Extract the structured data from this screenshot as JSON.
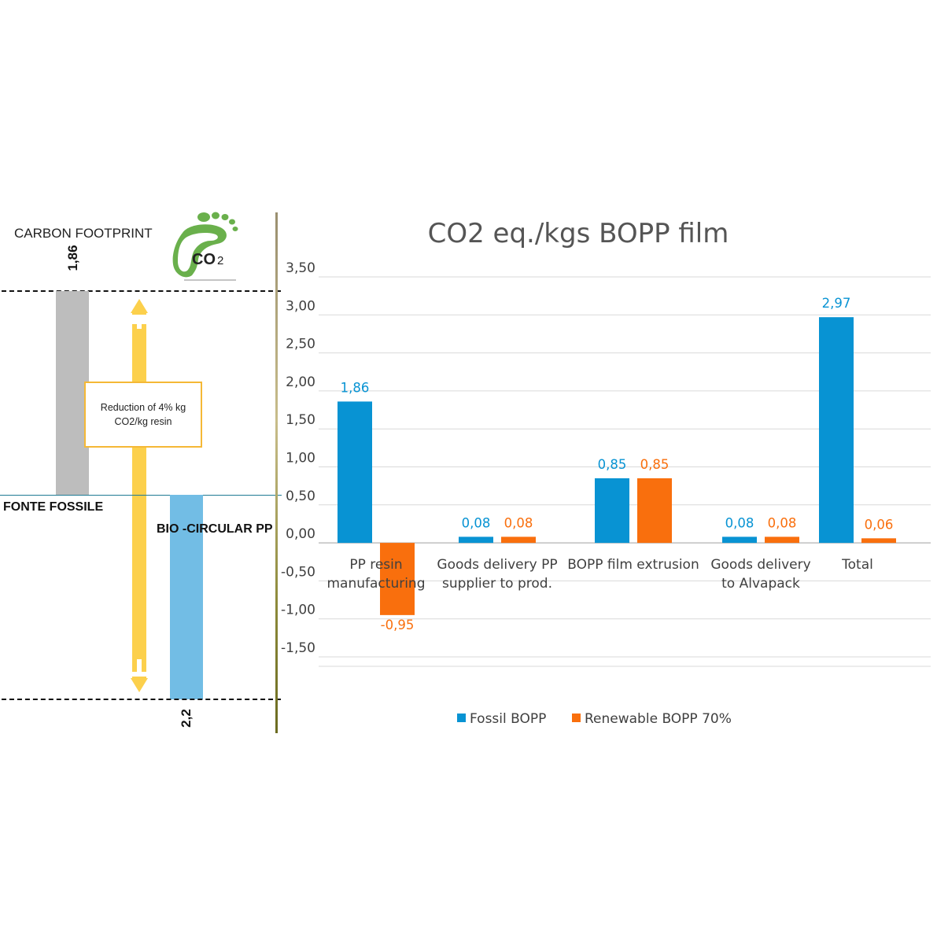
{
  "left_panel": {
    "title": "CARBON FOOTPRINT",
    "logo_text": "CO",
    "logo_sub": "2",
    "top_value": "1,86",
    "bottom_value": "2,2",
    "reduction_text": "Reduction of 4% kg CO2/kg resin",
    "fossil_label": "FONTE FOSSILE",
    "bio_label": "BIO -CIRCULAR PP",
    "colors": {
      "gray_bar": "#bdbdbd",
      "blue_bar": "#72bde5",
      "arrow": "#fcd04c",
      "logo": "#6ab04c"
    }
  },
  "chart_data": {
    "type": "bar",
    "title": "CO2 eq./kgs BOPP film",
    "categories": [
      [
        "PP resin",
        "manufacturing"
      ],
      [
        "Goods delivery  PP",
        "supplier  to prod."
      ],
      [
        "BOPP film  extrusion"
      ],
      [
        "Goods delivery",
        "to Alvapack"
      ],
      [
        "Total"
      ]
    ],
    "series": [
      {
        "name": "Fossil BOPP",
        "color": "#0893d3",
        "values": [
          1.86,
          0.08,
          0.85,
          0.08,
          2.97
        ],
        "labels": [
          "1,86",
          "0,08",
          "0,85",
          "0,08",
          "2,97"
        ]
      },
      {
        "name": "Renewable BOPP 70%",
        "color": "#f96f0d",
        "values": [
          -0.95,
          0.08,
          0.85,
          0.08,
          0.06
        ],
        "labels": [
          "-0,95",
          "0,08",
          "0,85",
          "0,08",
          "0,06"
        ]
      }
    ],
    "ylim": [
      -1.5,
      3.5
    ],
    "yticks": [
      "3,50",
      "3,00",
      "2,50",
      "2,00",
      "1,50",
      "1,00",
      "0,50",
      "0,00",
      "-0,50",
      "-1,00",
      "-1,50"
    ],
    "legend_position": "bottom",
    "grid": true
  }
}
